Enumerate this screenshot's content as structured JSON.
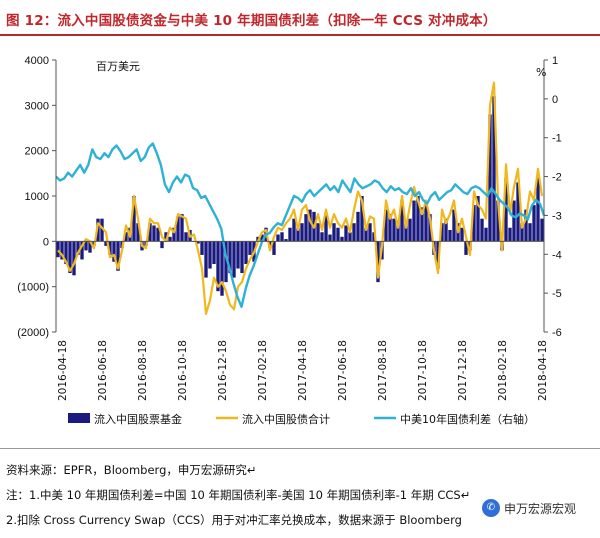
{
  "header": {
    "title": "图 12：流入中国股债资金与中美 10 年期国债利差（扣除一年 CCS 对冲成本）"
  },
  "notes": {
    "source": "资料来源：EPFR，Bloomberg，申万宏源研究↵",
    "note1": "注：1.中美 10 年期国债利差=中国 10 年期国债利率-美国 10 年期国债利率-1 年期 CCS↵",
    "note2": "2.扣除 Cross Currency Swap（CCS）用于对冲汇率兑换成本，数据来源于 Bloomberg"
  },
  "watermark": {
    "text": "申万宏源宏观",
    "icon": "wechat-icon"
  },
  "chart_data": {
    "type": "bar+line",
    "left_axis_unit": "百万美元",
    "right_axis_unit": "%",
    "ylim_left": [
      -2000,
      4000
    ],
    "ylim_right": [
      -6,
      1
    ],
    "left_ticks": [
      "4000",
      "3000",
      "2000",
      "1000",
      "0",
      "(1000)",
      "(2000)"
    ],
    "right_ticks": [
      "1",
      "0",
      "-1",
      "-2",
      "-3",
      "-4",
      "-5",
      "-6"
    ],
    "x_tick_labels": [
      "2016-04-18",
      "2016-06-18",
      "2016-08-18",
      "2016-10-18",
      "2016-12-18",
      "2017-02-18",
      "2017-04-18",
      "2017-06-18",
      "2017-08-18",
      "2017-10-18",
      "2017-12-18",
      "2018-02-18",
      "2018-04-18"
    ],
    "legend": [
      "流入中国股票基金",
      "流入中国股债合计",
      "中美10年国债利差（右轴）"
    ],
    "colors": {
      "bars": "#1a1a80",
      "total": "#f0b81e",
      "spread": "#2fb1d6",
      "axis": "#555555"
    },
    "series": [
      {
        "name": "流入中国股票基金",
        "type": "bar",
        "axis": "left",
        "values": [
          -350,
          -400,
          -500,
          -700,
          -750,
          -300,
          -400,
          -200,
          -250,
          -100,
          500,
          500,
          -100,
          -300,
          -450,
          -650,
          -150,
          200,
          300,
          1000,
          400,
          -200,
          -100,
          400,
          350,
          300,
          -150,
          200,
          100,
          300,
          550,
          600,
          200,
          250,
          0,
          -50,
          -300,
          -800,
          -600,
          -500,
          -1100,
          -1200,
          -900,
          -700,
          -800,
          -600,
          -700,
          -500,
          -300,
          -450,
          100,
          150,
          300,
          -150,
          -300,
          150,
          200,
          50,
          300,
          500,
          300,
          400,
          600,
          700,
          650,
          400,
          200,
          600,
          150,
          400,
          300,
          100,
          350,
          200,
          400,
          650,
          1000,
          300,
          400,
          200,
          -900,
          -400,
          700,
          600,
          500,
          450,
          900,
          400,
          500,
          900,
          1000,
          750,
          800,
          600,
          -300,
          -600,
          400,
          500,
          250,
          700,
          400,
          300,
          -300,
          -200,
          800,
          1000,
          500,
          300,
          2800,
          3200,
          900,
          -200,
          1400,
          300,
          900,
          1300,
          400,
          700,
          400,
          800,
          1400,
          500
        ],
        "total_values": [
          -200,
          -300,
          -450,
          -650,
          -500,
          -250,
          -100,
          50,
          0,
          -150,
          400,
          300,
          200,
          -350,
          -300,
          -600,
          -200,
          350,
          100,
          1000,
          500,
          -100,
          -150,
          500,
          400,
          400,
          100,
          0,
          300,
          200,
          600,
          550,
          500,
          100,
          150,
          -200,
          -600,
          -1600,
          -1300,
          -800,
          -1000,
          -900,
          -1100,
          -1400,
          -1500,
          -1000,
          -900,
          -600,
          -400,
          -250,
          0,
          200,
          250,
          -200,
          100,
          300,
          250,
          400,
          500,
          700,
          250,
          700,
          800,
          450,
          300,
          600,
          250,
          700,
          300,
          600,
          400,
          300,
          500,
          200,
          700,
          1100,
          900,
          250,
          550,
          500,
          -800,
          -100,
          900,
          500,
          700,
          300,
          1000,
          300,
          800,
          1200,
          900,
          600,
          900,
          500,
          -200,
          -700,
          700,
          400,
          600,
          900,
          200,
          500,
          100,
          -300,
          1100,
          800,
          700,
          500,
          3000,
          3500,
          900,
          -200,
          1700,
          600,
          1200,
          1600,
          300,
          500,
          1100,
          900,
          1600,
          1000
        ]
      },
      {
        "name": "中美10年国债利差（右轴）",
        "type": "line",
        "axis": "right",
        "values": [
          -2.0,
          -2.1,
          -2.05,
          -1.9,
          -2.0,
          -1.85,
          -1.7,
          -1.9,
          -1.7,
          -1.3,
          -1.5,
          -1.55,
          -1.4,
          -1.5,
          -1.3,
          -1.2,
          -1.35,
          -1.55,
          -1.5,
          -1.4,
          -1.3,
          -1.6,
          -1.5,
          -1.25,
          -1.15,
          -1.4,
          -1.7,
          -2.2,
          -2.4,
          -2.15,
          -2.0,
          -2.15,
          -1.95,
          -2.0,
          -2.3,
          -2.35,
          -2.55,
          -2.5,
          -2.7,
          -2.9,
          -3.1,
          -3.35,
          -4.0,
          -4.35,
          -4.75,
          -5.1,
          -5.35,
          -4.9,
          -4.55,
          -4.3,
          -4.0,
          -3.7,
          -3.5,
          -3.45,
          -3.3,
          -3.2,
          -3.25,
          -3.0,
          -2.75,
          -2.5,
          -2.55,
          -2.65,
          -2.45,
          -2.35,
          -2.5,
          -2.4,
          -2.3,
          -2.2,
          -2.35,
          -2.25,
          -2.4,
          -2.1,
          -2.25,
          -2.4,
          -2.05,
          -2.2,
          -2.3,
          -2.25,
          -2.2,
          -2.1,
          -2.15,
          -2.3,
          -2.4,
          -2.25,
          -2.35,
          -2.3,
          -2.4,
          -2.45,
          -2.3,
          -2.5,
          -2.4,
          -2.6,
          -2.7,
          -2.5,
          -2.4,
          -2.6,
          -2.5,
          -2.4,
          -2.35,
          -2.2,
          -2.3,
          -2.4,
          -2.45,
          -2.3,
          -2.25,
          -2.3,
          -2.4,
          -2.5,
          -2.3,
          -2.45,
          -2.6,
          -2.7,
          -2.8,
          -3.0,
          -3.05,
          -2.95,
          -3.0,
          -3.1,
          -2.75,
          -2.6,
          -2.7,
          -3.0
        ]
      }
    ]
  }
}
